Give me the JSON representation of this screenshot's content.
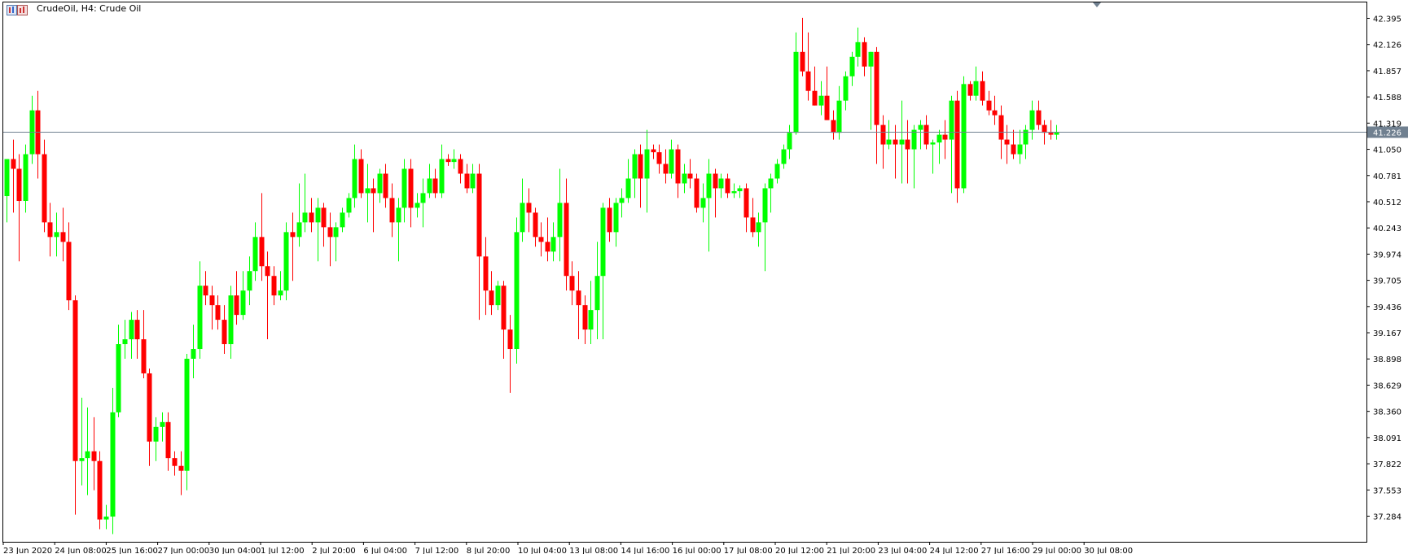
{
  "window": {
    "title": "CrudeOil, H4:  Crude Oil"
  },
  "colors": {
    "bull": "#00ff00",
    "bear": "#ff0000",
    "axis": "#000000",
    "background": "#ffffff",
    "current_price_line": "#708090",
    "current_price_tag": "#708090"
  },
  "chart_data": {
    "type": "candlestick",
    "symbol": "CrudeOil",
    "timeframe": "H4",
    "description": "Crude Oil",
    "current_price": 41.226,
    "current_price_label": "41.226",
    "ylim": [
      37.15,
      42.45
    ],
    "y_ticks": [
      "42.395",
      "42.126",
      "41.857",
      "41.588",
      "41.319",
      "41.050",
      "40.781",
      "40.512",
      "40.243",
      "39.974",
      "39.705",
      "39.436",
      "39.167",
      "38.898",
      "38.629",
      "38.360",
      "38.091",
      "37.822",
      "37.553",
      "37.284"
    ],
    "x_labels": [
      "23 Jun 2020",
      "24 Jun 08:00",
      "25 Jun 16:00",
      "27 Jun 00:00",
      "30 Jun 04:00",
      "1 Jul 12:00",
      "2 Jul 20:00",
      "6 Jul 04:00",
      "7 Jul 12:00",
      "8 Jul 20:00",
      "10 Jul 04:00",
      "13 Jul 08:00",
      "14 Jul 16:00",
      "16 Jul 00:00",
      "17 Jul 08:00",
      "20 Jul 12:00",
      "21 Jul 20:00",
      "23 Jul 04:00",
      "24 Jul 12:00",
      "27 Jul 16:00",
      "29 Jul 00:00",
      "30 Jul 08:00"
    ],
    "grid": false,
    "candles": [
      [
        40.57,
        40.95,
        40.3,
        40.95
      ],
      [
        40.95,
        41.15,
        40.4,
        40.85
      ],
      [
        40.85,
        41.0,
        39.9,
        40.52
      ],
      [
        40.52,
        41.1,
        40.4,
        41.0
      ],
      [
        41.0,
        41.6,
        40.9,
        41.45
      ],
      [
        41.45,
        41.65,
        40.75,
        41.0
      ],
      [
        41.0,
        41.15,
        40.2,
        40.3
      ],
      [
        40.3,
        40.5,
        39.95,
        40.15
      ],
      [
        40.15,
        40.4,
        39.95,
        40.2
      ],
      [
        40.2,
        40.45,
        39.9,
        40.1
      ],
      [
        40.1,
        40.3,
        39.4,
        39.5
      ],
      [
        39.5,
        39.55,
        37.3,
        37.85
      ],
      [
        37.85,
        38.5,
        37.6,
        37.88
      ],
      [
        37.88,
        38.4,
        37.5,
        37.95
      ],
      [
        37.95,
        38.3,
        37.55,
        37.85
      ],
      [
        37.85,
        37.95,
        37.15,
        37.25
      ],
      [
        37.25,
        37.4,
        37.15,
        37.28
      ],
      [
        37.28,
        38.6,
        37.1,
        38.35
      ],
      [
        38.35,
        39.25,
        38.3,
        39.05
      ],
      [
        39.05,
        39.3,
        38.9,
        39.1
      ],
      [
        39.1,
        39.38,
        38.9,
        39.3
      ],
      [
        39.3,
        39.4,
        38.9,
        39.1
      ],
      [
        39.1,
        39.4,
        38.7,
        38.75
      ],
      [
        38.75,
        38.8,
        37.8,
        38.05
      ],
      [
        38.05,
        38.3,
        37.85,
        38.2
      ],
      [
        38.2,
        38.35,
        38.05,
        38.25
      ],
      [
        38.25,
        38.35,
        37.75,
        37.88
      ],
      [
        37.88,
        37.95,
        37.7,
        37.8
      ],
      [
        37.8,
        37.95,
        37.5,
        37.75
      ],
      [
        37.75,
        38.95,
        37.55,
        38.9
      ],
      [
        38.9,
        39.25,
        38.7,
        39.0
      ],
      [
        39.0,
        39.9,
        38.9,
        39.65
      ],
      [
        39.65,
        39.8,
        39.45,
        39.55
      ],
      [
        39.55,
        39.65,
        39.2,
        39.45
      ],
      [
        39.45,
        39.55,
        39.2,
        39.3
      ],
      [
        39.3,
        39.45,
        38.95,
        39.05
      ],
      [
        39.05,
        39.65,
        38.9,
        39.55
      ],
      [
        39.55,
        39.8,
        39.25,
        39.35
      ],
      [
        39.35,
        39.8,
        39.3,
        39.6
      ],
      [
        39.6,
        39.95,
        39.45,
        39.8
      ],
      [
        39.8,
        40.3,
        39.7,
        40.15
      ],
      [
        40.15,
        40.6,
        39.7,
        39.85
      ],
      [
        39.85,
        40.0,
        39.1,
        39.75
      ],
      [
        39.75,
        39.85,
        39.45,
        39.55
      ],
      [
        39.55,
        39.8,
        39.5,
        39.6
      ],
      [
        39.6,
        40.3,
        39.5,
        40.2
      ],
      [
        40.2,
        40.4,
        39.7,
        40.15
      ],
      [
        40.15,
        40.7,
        40.05,
        40.3
      ],
      [
        40.3,
        40.8,
        40.2,
        40.4
      ],
      [
        40.4,
        40.55,
        40.2,
        40.3
      ],
      [
        40.3,
        40.55,
        39.9,
        40.45
      ],
      [
        40.45,
        40.5,
        40.05,
        40.25
      ],
      [
        40.25,
        40.4,
        39.85,
        40.15
      ],
      [
        40.15,
        40.3,
        39.9,
        40.25
      ],
      [
        40.25,
        40.45,
        40.2,
        40.4
      ],
      [
        40.4,
        40.6,
        40.35,
        40.55
      ],
      [
        40.55,
        41.1,
        40.45,
        40.95
      ],
      [
        40.95,
        41.05,
        40.55,
        40.6
      ],
      [
        40.6,
        40.9,
        40.3,
        40.65
      ],
      [
        40.65,
        40.75,
        40.2,
        40.6
      ],
      [
        40.6,
        40.85,
        40.5,
        40.8
      ],
      [
        40.8,
        40.9,
        40.45,
        40.55
      ],
      [
        40.55,
        40.7,
        40.15,
        40.3
      ],
      [
        40.3,
        40.55,
        39.9,
        40.45
      ],
      [
        40.45,
        40.95,
        40.3,
        40.85
      ],
      [
        40.85,
        40.95,
        40.25,
        40.45
      ],
      [
        40.45,
        40.6,
        40.35,
        40.5
      ],
      [
        40.5,
        40.75,
        40.25,
        40.6
      ],
      [
        40.6,
        40.9,
        40.55,
        40.75
      ],
      [
        40.75,
        40.85,
        40.55,
        40.6
      ],
      [
        40.6,
        41.1,
        40.55,
        40.95
      ],
      [
        40.95,
        41.0,
        40.88,
        40.92
      ],
      [
        40.92,
        41.05,
        40.85,
        40.95
      ],
      [
        40.95,
        41.0,
        40.7,
        40.8
      ],
      [
        40.8,
        40.9,
        40.6,
        40.65
      ],
      [
        40.65,
        40.9,
        40.6,
        40.8
      ],
      [
        40.8,
        40.9,
        39.3,
        39.95
      ],
      [
        39.95,
        40.15,
        39.35,
        39.6
      ],
      [
        39.6,
        39.8,
        39.35,
        39.45
      ],
      [
        39.45,
        39.7,
        39.4,
        39.65
      ],
      [
        39.65,
        39.7,
        38.9,
        39.2
      ],
      [
        39.2,
        39.35,
        38.55,
        39.0
      ],
      [
        39.0,
        40.35,
        38.85,
        40.2
      ],
      [
        40.2,
        40.75,
        40.1,
        40.5
      ],
      [
        40.5,
        40.65,
        40.2,
        40.4
      ],
      [
        40.4,
        40.45,
        40.05,
        40.15
      ],
      [
        40.15,
        40.3,
        39.95,
        40.1
      ],
      [
        40.1,
        40.35,
        39.9,
        40.0
      ],
      [
        40.0,
        40.3,
        39.9,
        40.15
      ],
      [
        40.15,
        40.85,
        39.9,
        40.5
      ],
      [
        40.5,
        40.75,
        39.6,
        39.75
      ],
      [
        39.75,
        39.9,
        39.45,
        39.6
      ],
      [
        39.6,
        39.8,
        39.1,
        39.45
      ],
      [
        39.45,
        39.55,
        39.05,
        39.2
      ],
      [
        39.2,
        39.7,
        39.05,
        39.4
      ],
      [
        39.4,
        40.1,
        39.1,
        39.75
      ],
      [
        39.75,
        40.5,
        39.1,
        40.45
      ],
      [
        40.45,
        40.55,
        40.1,
        40.2
      ],
      [
        40.2,
        40.55,
        40.05,
        40.5
      ],
      [
        40.5,
        40.65,
        40.35,
        40.55
      ],
      [
        40.55,
        40.95,
        40.5,
        40.75
      ],
      [
        40.75,
        41.05,
        40.55,
        41.0
      ],
      [
        41.0,
        41.1,
        40.45,
        40.75
      ],
      [
        40.75,
        41.25,
        40.4,
        41.05
      ],
      [
        41.05,
        41.1,
        40.95,
        41.02
      ],
      [
        41.02,
        41.1,
        40.8,
        40.9
      ],
      [
        40.9,
        41.05,
        40.7,
        40.8
      ],
      [
        40.8,
        41.15,
        40.75,
        41.05
      ],
      [
        41.05,
        41.1,
        40.55,
        40.7
      ],
      [
        40.7,
        40.9,
        40.6,
        40.8
      ],
      [
        40.8,
        40.95,
        40.65,
        40.75
      ],
      [
        40.75,
        40.8,
        40.4,
        40.45
      ],
      [
        40.45,
        40.7,
        40.3,
        40.55
      ],
      [
        40.55,
        40.95,
        40.0,
        40.8
      ],
      [
        40.8,
        40.85,
        40.35,
        40.65
      ],
      [
        40.65,
        40.8,
        40.55,
        40.75
      ],
      [
        40.75,
        40.8,
        40.55,
        40.6
      ],
      [
        40.6,
        40.7,
        40.55,
        40.62
      ],
      [
        40.62,
        40.68,
        40.55,
        40.65
      ],
      [
        40.65,
        40.7,
        40.2,
        40.35
      ],
      [
        40.35,
        40.55,
        40.15,
        40.2
      ],
      [
        40.2,
        40.4,
        40.05,
        40.3
      ],
      [
        40.3,
        40.7,
        39.8,
        40.65
      ],
      [
        40.65,
        40.8,
        40.4,
        40.75
      ],
      [
        40.75,
        40.95,
        40.7,
        40.9
      ],
      [
        40.9,
        41.1,
        40.85,
        41.05
      ],
      [
        41.05,
        41.3,
        40.95,
        41.22
      ],
      [
        41.22,
        42.25,
        41.2,
        42.05
      ],
      [
        42.05,
        42.4,
        41.8,
        41.85
      ],
      [
        41.85,
        42.25,
        41.55,
        41.65
      ],
      [
        41.65,
        41.9,
        41.5,
        41.5
      ],
      [
        41.5,
        41.75,
        41.4,
        41.6
      ],
      [
        41.6,
        41.9,
        41.35,
        41.35
      ],
      [
        41.35,
        41.45,
        41.15,
        41.22
      ],
      [
        41.22,
        41.7,
        41.15,
        41.55
      ],
      [
        41.55,
        41.85,
        41.45,
        41.8
      ],
      [
        41.8,
        42.05,
        41.7,
        42.0
      ],
      [
        42.0,
        42.3,
        41.9,
        42.15
      ],
      [
        42.15,
        42.2,
        41.8,
        41.9
      ],
      [
        41.9,
        42.05,
        41.25,
        42.05
      ],
      [
        42.05,
        42.1,
        40.9,
        41.3
      ],
      [
        41.3,
        41.4,
        40.85,
        41.1
      ],
      [
        41.1,
        41.35,
        41.05,
        41.15
      ],
      [
        41.15,
        41.3,
        40.75,
        41.1
      ],
      [
        41.1,
        41.55,
        40.7,
        41.15
      ],
      [
        41.15,
        41.35,
        40.7,
        41.05
      ],
      [
        41.05,
        41.3,
        40.65,
        41.25
      ],
      [
        41.25,
        41.35,
        41.05,
        41.3
      ],
      [
        41.3,
        41.4,
        41.05,
        41.1
      ],
      [
        41.1,
        41.15,
        40.8,
        41.12
      ],
      [
        41.12,
        41.25,
        40.9,
        41.2
      ],
      [
        41.2,
        41.35,
        40.95,
        41.15
      ],
      [
        41.15,
        41.6,
        40.6,
        41.55
      ],
      [
        41.55,
        41.65,
        40.5,
        40.65
      ],
      [
        40.65,
        41.8,
        40.6,
        41.72
      ],
      [
        41.72,
        41.75,
        41.55,
        41.6
      ],
      [
        41.6,
        41.9,
        41.55,
        41.75
      ],
      [
        41.75,
        41.85,
        41.5,
        41.55
      ],
      [
        41.55,
        41.65,
        41.4,
        41.45
      ],
      [
        41.45,
        41.6,
        41.3,
        41.4
      ],
      [
        41.4,
        41.5,
        40.95,
        41.15
      ],
      [
        41.15,
        41.3,
        40.9,
        41.1
      ],
      [
        41.1,
        41.25,
        40.95,
        41.0
      ],
      [
        41.0,
        41.25,
        40.9,
        41.1
      ],
      [
        41.1,
        41.3,
        40.95,
        41.25
      ],
      [
        41.25,
        41.55,
        41.15,
        41.45
      ],
      [
        41.45,
        41.55,
        41.25,
        41.3
      ],
      [
        41.3,
        41.35,
        41.1,
        41.22
      ],
      [
        41.22,
        41.35,
        41.15,
        41.2
      ],
      [
        41.2,
        41.3,
        41.15,
        41.23
      ]
    ]
  }
}
